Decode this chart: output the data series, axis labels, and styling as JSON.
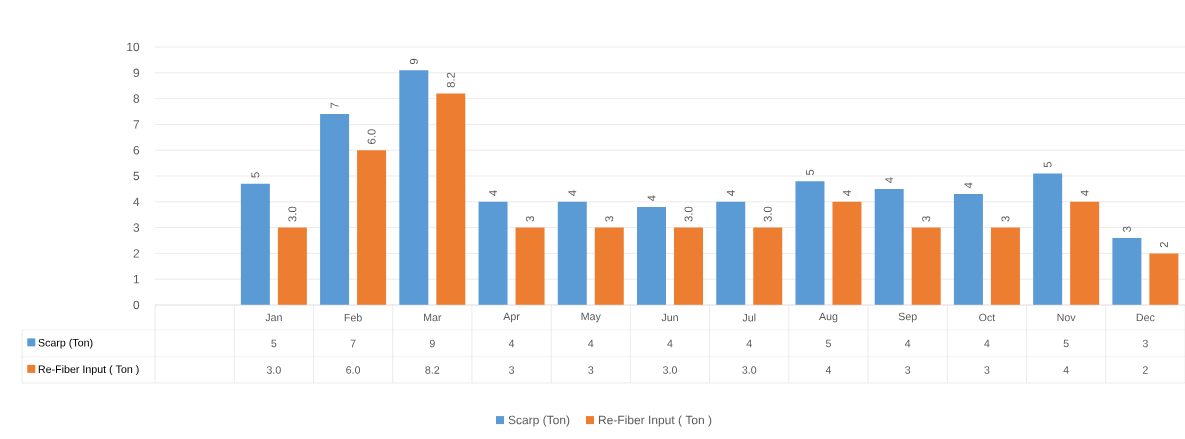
{
  "chart_data": {
    "type": "bar",
    "categories": [
      null,
      "Jan",
      "Feb",
      "Mar",
      "Apr",
      "May",
      "Jun",
      "Jul",
      "Aug",
      "Sep",
      "Oct",
      "Nov",
      "Dec"
    ],
    "series": [
      {
        "name": "Scarp (Ton)",
        "color": "#5b9bd5",
        "values": [
          null,
          4.7,
          7.4,
          9.1,
          4.0,
          4.0,
          3.8,
          4.0,
          4.8,
          4.5,
          4.3,
          5.1,
          2.6
        ],
        "value_labels": [
          null,
          "5",
          "7",
          "9",
          "4",
          "4",
          "4",
          "4",
          "5",
          "4",
          "4",
          "5",
          "3"
        ]
      },
      {
        "name": "Re-Fiber Input ( Ton )",
        "color": "#ed7d31",
        "values": [
          null,
          3,
          6,
          8.2,
          3,
          3,
          3,
          3,
          4,
          3,
          3,
          4,
          2
        ],
        "value_labels": [
          null,
          "3.0",
          "6.0",
          "8.2",
          "3",
          "3",
          "3.0",
          "3.0",
          "4",
          "3",
          "3",
          "4",
          "2"
        ]
      }
    ],
    "ylim": [
      0,
      10
    ],
    "yticks": [
      0,
      1,
      2,
      3,
      4,
      5,
      6,
      7,
      8,
      9,
      10
    ],
    "grid": "y",
    "legend": "bottom"
  }
}
